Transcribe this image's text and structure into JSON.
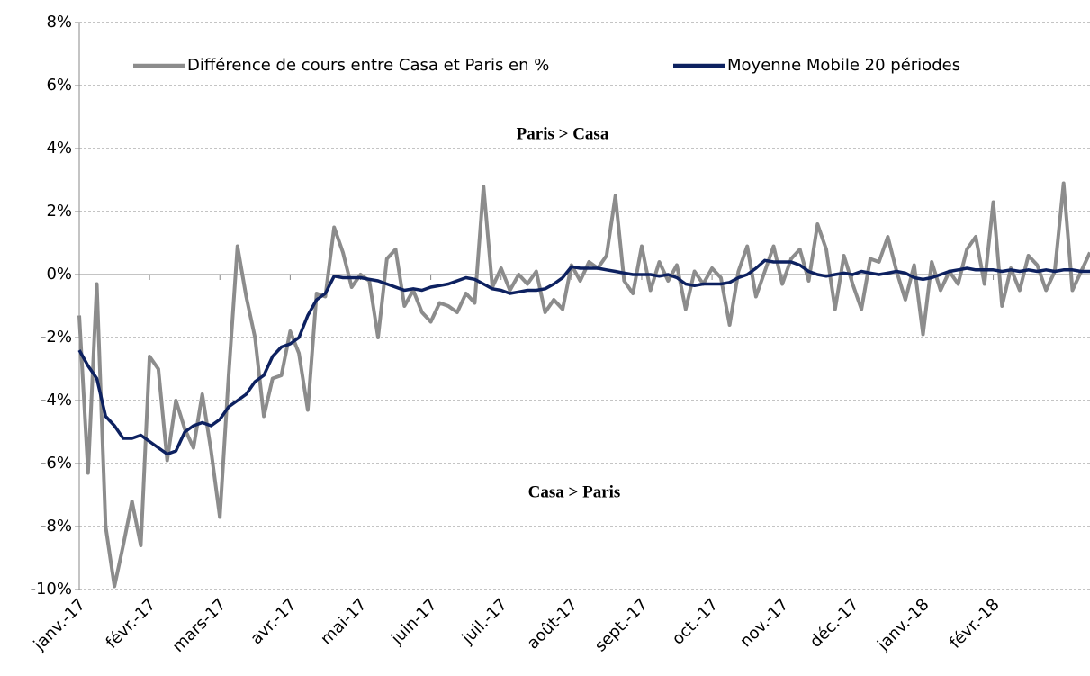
{
  "chart_data": {
    "type": "line",
    "categories": [
      "janv.-17",
      null,
      null,
      null,
      null,
      null,
      null,
      null,
      "févr.-17",
      null,
      null,
      null,
      null,
      null,
      null,
      null,
      "mars-17",
      null,
      null,
      null,
      null,
      null,
      null,
      null,
      "avr.-17",
      null,
      null,
      null,
      null,
      null,
      null,
      null,
      "mai-17",
      null,
      null,
      null,
      null,
      null,
      null,
      null,
      "juin-17",
      null,
      null,
      null,
      null,
      null,
      null,
      null,
      "juil.-17",
      null,
      null,
      null,
      null,
      null,
      null,
      null,
      "août-17",
      null,
      null,
      null,
      null,
      null,
      null,
      null,
      "sept.-17",
      null,
      null,
      null,
      null,
      null,
      null,
      null,
      "oct.-17",
      null,
      null,
      null,
      null,
      null,
      null,
      null,
      "nov.-17",
      null,
      null,
      null,
      null,
      null,
      null,
      null,
      "déc.-17",
      null,
      null,
      null,
      null,
      null,
      null,
      null,
      "janv.-18",
      null,
      null,
      null,
      null,
      null,
      null,
      null,
      "févr.-18",
      null,
      null,
      null,
      null,
      null,
      null,
      null,
      null,
      null,
      null,
      null
    ],
    "series": [
      {
        "name": "Différence de cours entre Casa et Paris en %",
        "color": "#8c8c8c",
        "values": [
          -1.3,
          -6.3,
          -0.3,
          -8.0,
          -9.9,
          -8.6,
          -7.2,
          -8.6,
          -2.6,
          -3.0,
          -5.9,
          -4.0,
          -4.9,
          -5.5,
          -3.8,
          -5.6,
          -7.7,
          -3.2,
          0.9,
          -0.7,
          -2.0,
          -4.5,
          -3.3,
          -3.2,
          -1.8,
          -2.5,
          -4.3,
          -0.6,
          -0.7,
          1.5,
          0.7,
          -0.4,
          0.0,
          -0.2,
          -2.0,
          0.5,
          0.8,
          -1.0,
          -0.5,
          -1.2,
          -1.5,
          -0.9,
          -1.0,
          -1.2,
          -0.6,
          -0.9,
          2.8,
          -0.4,
          0.2,
          -0.5,
          0.0,
          -0.3,
          0.1,
          -1.2,
          -0.8,
          -1.1,
          0.3,
          -0.2,
          0.4,
          0.2,
          0.6,
          2.5,
          -0.2,
          -0.6,
          0.9,
          -0.5,
          0.4,
          -0.2,
          0.3,
          -1.1,
          0.1,
          -0.3,
          0.2,
          -0.1,
          -1.6,
          0.1,
          0.9,
          -0.7,
          0.1,
          0.9,
          -0.3,
          0.5,
          0.8,
          -0.2,
          1.6,
          0.8,
          -1.1,
          0.6,
          -0.3,
          -1.1,
          0.5,
          0.4,
          1.2,
          0.1,
          -0.8,
          0.3,
          -1.9,
          0.4,
          -0.5,
          0.1,
          -0.3,
          0.8,
          1.2,
          -0.3,
          2.3,
          -1.0,
          0.2,
          -0.5,
          0.6,
          0.3,
          -0.5,
          0.1,
          2.9,
          -0.5,
          0.1,
          0.7
        ]
      },
      {
        "name": "Moyenne Mobile 20 périodes",
        "color": "#0d2160",
        "values": [
          -2.4,
          -2.9,
          -3.3,
          -4.5,
          -4.8,
          -5.2,
          -5.2,
          -5.1,
          -5.3,
          -5.5,
          -5.7,
          -5.6,
          -5.0,
          -4.8,
          -4.7,
          -4.8,
          -4.6,
          -4.2,
          -4.0,
          -3.8,
          -3.4,
          -3.2,
          -2.6,
          -2.3,
          -2.2,
          -2.0,
          -1.3,
          -0.8,
          -0.6,
          -0.05,
          -0.1,
          -0.1,
          -0.1,
          -0.15,
          -0.2,
          -0.3,
          -0.4,
          -0.5,
          -0.45,
          -0.5,
          -0.4,
          -0.35,
          -0.3,
          -0.2,
          -0.1,
          -0.15,
          -0.3,
          -0.45,
          -0.5,
          -0.6,
          -0.55,
          -0.5,
          -0.5,
          -0.45,
          -0.3,
          -0.1,
          0.25,
          0.2,
          0.2,
          0.2,
          0.15,
          0.1,
          0.05,
          0.0,
          0.0,
          0.0,
          -0.05,
          0.0,
          -0.1,
          -0.3,
          -0.35,
          -0.3,
          -0.3,
          -0.3,
          -0.25,
          -0.1,
          0.0,
          0.2,
          0.45,
          0.4,
          0.4,
          0.4,
          0.3,
          0.1,
          0.0,
          -0.05,
          0.0,
          0.05,
          0.0,
          0.1,
          0.05,
          0.0,
          0.05,
          0.1,
          0.05,
          -0.1,
          -0.15,
          -0.1,
          0.0,
          0.1,
          0.15,
          0.2,
          0.15,
          0.15,
          0.15,
          0.1,
          0.15,
          0.1,
          0.15,
          0.1,
          0.15,
          0.1,
          0.15,
          0.15,
          0.1,
          0.1
        ]
      }
    ],
    "ylim": [
      -10,
      8
    ],
    "yticks": [
      {
        "value": -10,
        "label": "-10%"
      },
      {
        "value": -8,
        "label": "-8%"
      },
      {
        "value": -6,
        "label": "-6%"
      },
      {
        "value": -4,
        "label": "-4%"
      },
      {
        "value": -2,
        "label": "-2%"
      },
      {
        "value": 0,
        "label": "0%"
      },
      {
        "value": 2,
        "label": "2%"
      },
      {
        "value": 4,
        "label": "4%"
      },
      {
        "value": 6,
        "label": "6%"
      },
      {
        "value": 8,
        "label": "8%"
      }
    ],
    "grid": true,
    "legend": "top",
    "annotations": [
      "Paris > Casa",
      "Casa > Paris"
    ]
  }
}
